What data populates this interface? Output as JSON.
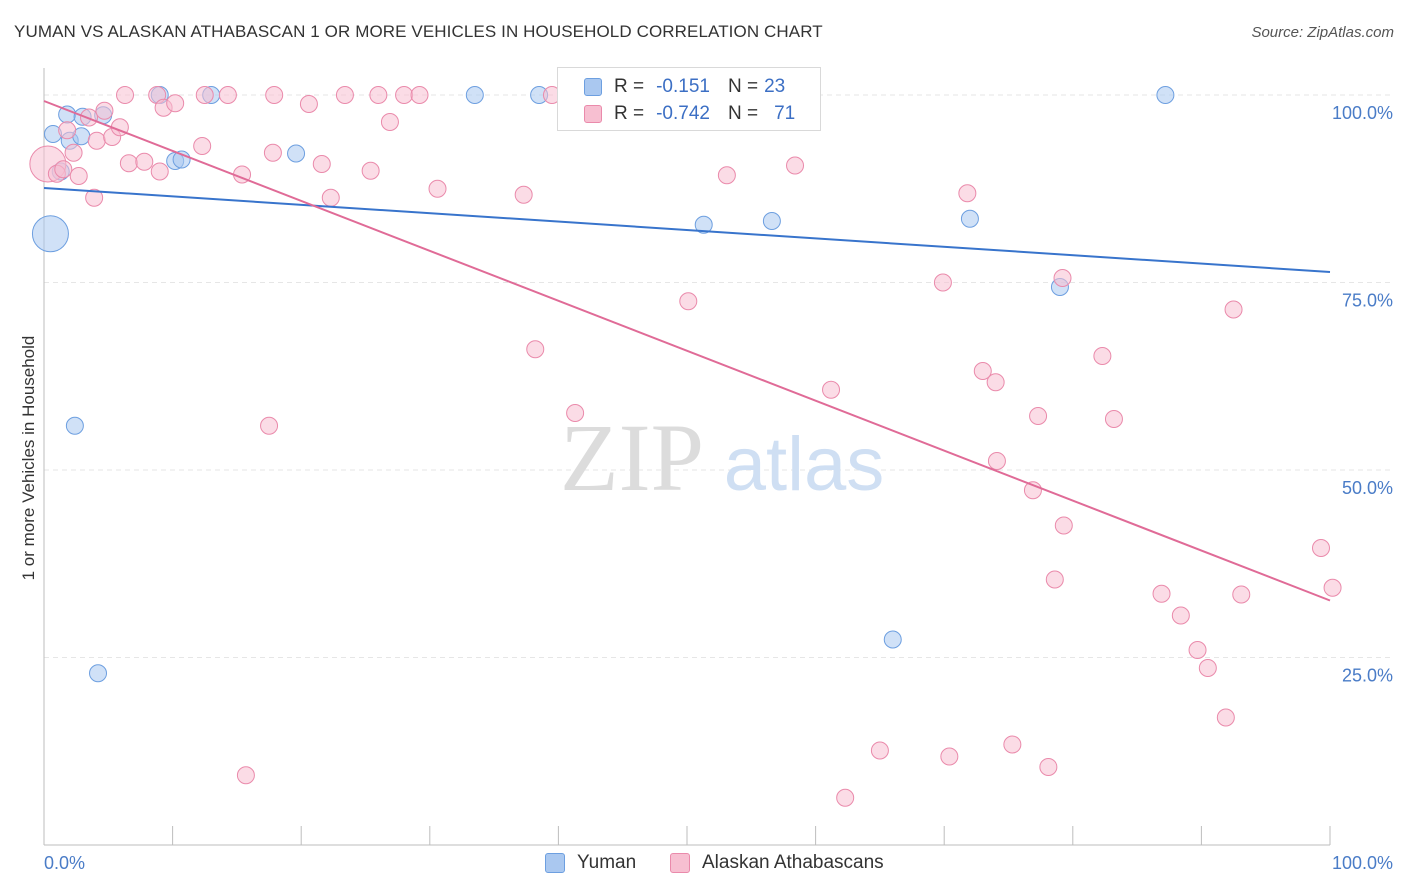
{
  "header": {
    "title": "YUMAN VS ALASKAN ATHABASCAN 1 OR MORE VEHICLES IN HOUSEHOLD CORRELATION CHART",
    "source": "Source: ZipAtlas.com"
  },
  "watermark": {
    "part1": "ZIP",
    "part2": "atlas"
  },
  "legend": {
    "rows": [
      {
        "r_label": "R =",
        "r_value": "-0.151",
        "n_label": "N =",
        "n_value": "23",
        "color": "#aac8f0",
        "stroke": "#6d9fe0"
      },
      {
        "r_label": "R =",
        "r_value": "-0.742",
        "n_label": "N =",
        "n_value": "71",
        "color": "#f7bfd1",
        "stroke": "#ea8aab"
      }
    ]
  },
  "bottom_legend": {
    "items": [
      {
        "label": "Yuman",
        "color": "#aac8f0",
        "stroke": "#6d9fe0"
      },
      {
        "label": "Alaskan Athabascans",
        "color": "#f7bfd1",
        "stroke": "#ea8aab"
      }
    ]
  },
  "chart_data": {
    "type": "scatter",
    "xlabel": "",
    "ylabel": "1 or more Vehicles in Household",
    "x_tick_labels": [
      "0.0%",
      "100.0%"
    ],
    "y_tick_labels": [
      "100.0%",
      "75.0%",
      "50.0%",
      "25.0%"
    ],
    "y_ticks": [
      100,
      75,
      50,
      25
    ],
    "xlim": [
      0,
      100
    ],
    "ylim": [
      0,
      102
    ],
    "grid": true,
    "series": [
      {
        "name": "Yuman",
        "color": "#aac8f0",
        "stroke": "#6d9fe0",
        "line_color": "#3874cc",
        "trend": {
          "x": [
            0,
            100
          ],
          "y": [
            87.6,
            76.4
          ]
        },
        "points": [
          {
            "x": 0.5,
            "y": 81.5,
            "big": true
          },
          {
            "x": 0.7,
            "y": 94.8
          },
          {
            "x": 1.3,
            "y": 89.8
          },
          {
            "x": 1.8,
            "y": 97.4
          },
          {
            "x": 2.0,
            "y": 93.9
          },
          {
            "x": 3.0,
            "y": 97.1
          },
          {
            "x": 2.9,
            "y": 94.5
          },
          {
            "x": 4.6,
            "y": 97.3
          },
          {
            "x": 9.0,
            "y": 100
          },
          {
            "x": 10.2,
            "y": 91.2
          },
          {
            "x": 10.7,
            "y": 91.4
          },
          {
            "x": 13.0,
            "y": 100
          },
          {
            "x": 19.6,
            "y": 92.2
          },
          {
            "x": 33.5,
            "y": 100
          },
          {
            "x": 38.5,
            "y": 100
          },
          {
            "x": 51.3,
            "y": 82.7
          },
          {
            "x": 56.6,
            "y": 83.2
          },
          {
            "x": 72.0,
            "y": 83.5
          },
          {
            "x": 79.0,
            "y": 74.4
          },
          {
            "x": 87.2,
            "y": 100
          },
          {
            "x": 2.4,
            "y": 55.9
          },
          {
            "x": 4.2,
            "y": 22.9
          },
          {
            "x": 66.0,
            "y": 27.4
          }
        ]
      },
      {
        "name": "Alaskan Athabascans",
        "color": "#f7bfd1",
        "stroke": "#ea8aab",
        "line_color": "#e06b97",
        "trend": {
          "x": [
            0,
            100
          ],
          "y": [
            99.2,
            32.6
          ]
        },
        "points": [
          {
            "x": 0.3,
            "y": 90.8,
            "big": true
          },
          {
            "x": 1.0,
            "y": 89.5
          },
          {
            "x": 1.5,
            "y": 90.1
          },
          {
            "x": 1.8,
            "y": 95.3
          },
          {
            "x": 2.3,
            "y": 92.3
          },
          {
            "x": 2.7,
            "y": 89.2
          },
          {
            "x": 3.5,
            "y": 97.0
          },
          {
            "x": 3.9,
            "y": 86.3
          },
          {
            "x": 4.1,
            "y": 93.9
          },
          {
            "x": 4.7,
            "y": 97.9
          },
          {
            "x": 5.3,
            "y": 94.4
          },
          {
            "x": 5.9,
            "y": 95.7
          },
          {
            "x": 6.3,
            "y": 100
          },
          {
            "x": 6.6,
            "y": 90.9
          },
          {
            "x": 7.8,
            "y": 91.1
          },
          {
            "x": 8.8,
            "y": 100
          },
          {
            "x": 9.0,
            "y": 89.8
          },
          {
            "x": 9.3,
            "y": 98.3
          },
          {
            "x": 10.2,
            "y": 98.9
          },
          {
            "x": 12.3,
            "y": 93.2
          },
          {
            "x": 12.5,
            "y": 100
          },
          {
            "x": 14.3,
            "y": 100
          },
          {
            "x": 15.4,
            "y": 89.4
          },
          {
            "x": 17.5,
            "y": 55.9
          },
          {
            "x": 17.8,
            "y": 92.3
          },
          {
            "x": 17.9,
            "y": 100
          },
          {
            "x": 20.6,
            "y": 98.8
          },
          {
            "x": 21.6,
            "y": 90.8
          },
          {
            "x": 22.3,
            "y": 86.3
          },
          {
            "x": 23.4,
            "y": 100
          },
          {
            "x": 25.4,
            "y": 89.9
          },
          {
            "x": 26.0,
            "y": 100
          },
          {
            "x": 26.9,
            "y": 96.4
          },
          {
            "x": 28.0,
            "y": 100
          },
          {
            "x": 29.2,
            "y": 100
          },
          {
            "x": 30.6,
            "y": 87.5
          },
          {
            "x": 37.3,
            "y": 86.7
          },
          {
            "x": 38.2,
            "y": 66.1
          },
          {
            "x": 39.5,
            "y": 100
          },
          {
            "x": 41.3,
            "y": 57.6
          },
          {
            "x": 50.1,
            "y": 72.5
          },
          {
            "x": 53.1,
            "y": 89.3
          },
          {
            "x": 58.4,
            "y": 90.6
          },
          {
            "x": 61.2,
            "y": 60.7
          },
          {
            "x": 62.3,
            "y": 6.3
          },
          {
            "x": 65.0,
            "y": 12.6
          },
          {
            "x": 69.9,
            "y": 75.0
          },
          {
            "x": 70.4,
            "y": 11.8
          },
          {
            "x": 71.8,
            "y": 86.9
          },
          {
            "x": 73.0,
            "y": 63.2
          },
          {
            "x": 74.0,
            "y": 61.7
          },
          {
            "x": 74.1,
            "y": 51.2
          },
          {
            "x": 75.3,
            "y": 13.4
          },
          {
            "x": 76.9,
            "y": 47.3
          },
          {
            "x": 77.3,
            "y": 57.2
          },
          {
            "x": 78.1,
            "y": 10.4
          },
          {
            "x": 78.6,
            "y": 35.4
          },
          {
            "x": 79.2,
            "y": 75.6
          },
          {
            "x": 79.3,
            "y": 42.6
          },
          {
            "x": 82.3,
            "y": 65.2
          },
          {
            "x": 83.2,
            "y": 56.8
          },
          {
            "x": 86.9,
            "y": 33.5
          },
          {
            "x": 88.4,
            "y": 30.6
          },
          {
            "x": 89.7,
            "y": 26.0
          },
          {
            "x": 90.5,
            "y": 23.6
          },
          {
            "x": 91.9,
            "y": 17.0
          },
          {
            "x": 92.5,
            "y": 71.4
          },
          {
            "x": 93.1,
            "y": 33.4
          },
          {
            "x": 99.3,
            "y": 39.6
          },
          {
            "x": 100.2,
            "y": 34.3
          },
          {
            "x": 15.7,
            "y": 9.3
          }
        ]
      }
    ]
  }
}
